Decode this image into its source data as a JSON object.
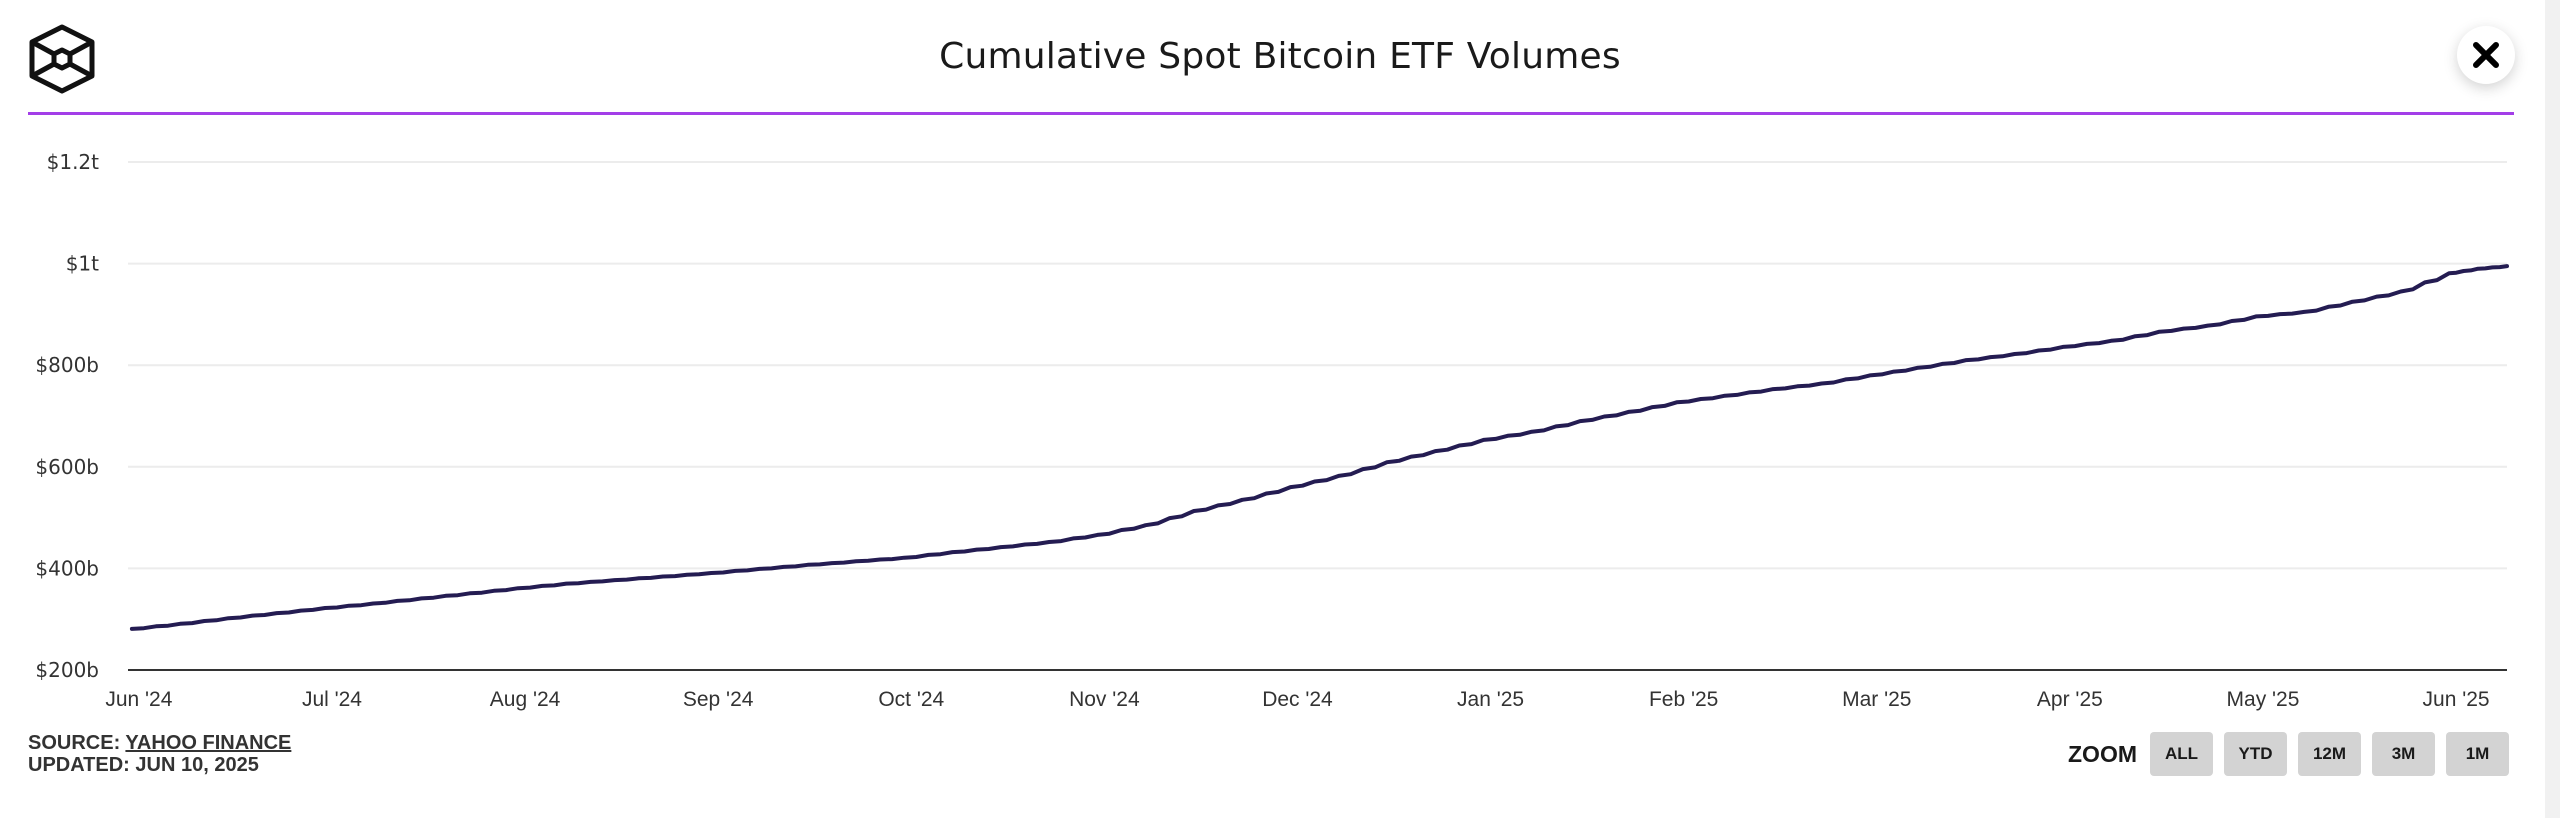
{
  "header": {
    "title": "Cumulative Spot Bitcoin ETF Volumes",
    "logo_icon": "hexagon-cube-logo-icon",
    "close_icon": "close-icon"
  },
  "colors": {
    "accent_rule": "#a33ee8",
    "line": "#241c52",
    "grid": "#ececec",
    "axis": "#333333",
    "zoom_button_bg": "#d3d3d3"
  },
  "footer": {
    "source_prefix": "SOURCE: ",
    "source_link": "YAHOO FINANCE",
    "updated": "UPDATED: JUN 10, 2025"
  },
  "zoom_controls": {
    "label": "ZOOM",
    "buttons": [
      "ALL",
      "YTD",
      "12M",
      "3M",
      "1M"
    ]
  },
  "chart_data": {
    "type": "line",
    "title": "Cumulative Spot Bitcoin ETF Volumes",
    "xlabel": "",
    "ylabel": "",
    "units": "USD billions",
    "ylim": [
      200,
      1200
    ],
    "yticks": [
      200,
      400,
      600,
      800,
      1000,
      1200
    ],
    "ytick_labels": [
      "$200b",
      "$400b",
      "$600b",
      "$800b",
      "$1t",
      "$1.2t"
    ],
    "xtick_labels": [
      "Jun '24",
      "Jul '24",
      "Aug '24",
      "Sep '24",
      "Oct '24",
      "Nov '24",
      "Dec '24",
      "Jan '25",
      "Feb '25",
      "Mar '25",
      "Apr '25",
      "May '25",
      "Jun '25"
    ],
    "x_range_months": [
      -0.02,
      12.3
    ],
    "grid": true,
    "legend": "none",
    "series": [
      {
        "name": "Cumulative Volume",
        "x_months": [
          0.0,
          0.25,
          0.5,
          0.75,
          1.0,
          1.25,
          1.5,
          1.75,
          2.0,
          2.25,
          2.5,
          2.75,
          3.0,
          3.25,
          3.5,
          3.75,
          4.0,
          4.25,
          4.5,
          4.75,
          5.0,
          5.25,
          5.5,
          5.75,
          6.0,
          6.25,
          6.5,
          6.75,
          7.0,
          7.25,
          7.5,
          7.75,
          8.0,
          8.25,
          8.5,
          8.75,
          9.0,
          9.25,
          9.5,
          9.75,
          10.0,
          10.25,
          10.5,
          10.75,
          11.0,
          11.25,
          11.5,
          11.75,
          12.0,
          12.15,
          12.3
        ],
        "values": [
          281,
          291,
          302,
          312,
          322,
          331,
          341,
          351,
          361,
          370,
          377,
          384,
          391,
          399,
          407,
          414,
          421,
          432,
          442,
          452,
          466,
          485,
          513,
          535,
          560,
          582,
          609,
          631,
          653,
          669,
          690,
          708,
          727,
          740,
          753,
          764,
          780,
          795,
          810,
          822,
          836,
          848,
          866,
          878,
          896,
          905,
          925,
          945,
          981,
          990,
          995
        ]
      }
    ]
  }
}
